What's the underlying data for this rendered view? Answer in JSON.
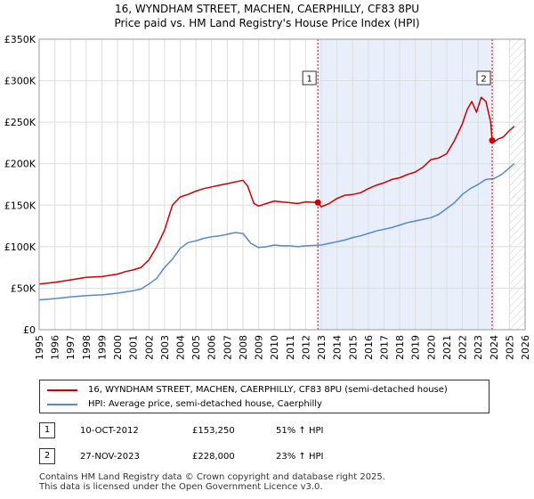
{
  "header": {
    "title_line1": "16, WYNDHAM STREET, MACHEN, CAERPHILLY, CF83 8PU",
    "title_line2": "Price paid vs. HM Land Registry's House Price Index (HPI)"
  },
  "colors": {
    "property": "#cc0000",
    "hpi": "#5588cc",
    "shade": "#e8eefa",
    "grid": "#dddddd",
    "marker_line": "#cc0000"
  },
  "chart_data": {
    "type": "line",
    "title": "Price paid vs. HM Land Registry's House Price Index (HPI)",
    "xlabel": "",
    "ylabel": "",
    "xlim": [
      1995,
      2026
    ],
    "ylim": [
      0,
      350000
    ],
    "x_ticks": [
      1995,
      1996,
      1997,
      1998,
      1999,
      2000,
      2001,
      2002,
      2003,
      2004,
      2005,
      2006,
      2007,
      2008,
      2009,
      2010,
      2011,
      2012,
      2013,
      2014,
      2015,
      2016,
      2017,
      2018,
      2019,
      2020,
      2021,
      2022,
      2023,
      2024,
      2025,
      2026
    ],
    "y_ticks": [
      {
        "value": 0,
        "label": "£0"
      },
      {
        "value": 50000,
        "label": "£50K"
      },
      {
        "value": 100000,
        "label": "£100K"
      },
      {
        "value": 150000,
        "label": "£150K"
      },
      {
        "value": 200000,
        "label": "£200K"
      },
      {
        "value": 250000,
        "label": "£250K"
      },
      {
        "value": 300000,
        "label": "£300K"
      },
      {
        "value": 350000,
        "label": "£350K"
      }
    ],
    "grid": true,
    "shaded_range": [
      2012.78,
      2023.9
    ],
    "hatched_after": 2025.0,
    "series": [
      {
        "name": "16, WYNDHAM STREET, MACHEN, CAERPHILLY, CF83 8PU (semi-detached house)",
        "color": "#cc0000",
        "x": [
          1995,
          1996,
          1997,
          1998,
          1999,
          2000,
          2000.5,
          2001,
          2001.5,
          2002,
          2002.5,
          2003,
          2003.5,
          2004,
          2004.5,
          2005,
          2005.5,
          2006,
          2006.5,
          2007,
          2007.5,
          2008,
          2008.3,
          2008.7,
          2009,
          2009.5,
          2010,
          2010.5,
          2011,
          2011.5,
          2012,
          2012.78,
          2013,
          2013.5,
          2014,
          2014.5,
          2015,
          2015.5,
          2016,
          2016.5,
          2017,
          2017.5,
          2018,
          2018.5,
          2019,
          2019.5,
          2020,
          2020.5,
          2021,
          2021.5,
          2022,
          2022.3,
          2022.6,
          2022.9,
          2023.2,
          2023.5,
          2023.8,
          2023.9,
          2024,
          2024.3,
          2024.6,
          2025,
          2025.3
        ],
        "values": [
          55000,
          57000,
          60000,
          63000,
          64000,
          67000,
          70000,
          72000,
          75000,
          84000,
          100000,
          120000,
          150000,
          160000,
          163000,
          167000,
          170000,
          172000,
          174000,
          176000,
          178000,
          180000,
          173000,
          152000,
          149000,
          152000,
          155000,
          154000,
          153000,
          152000,
          154000,
          153250,
          148000,
          152000,
          158000,
          162000,
          163000,
          165000,
          170000,
          174000,
          177000,
          181000,
          183000,
          187000,
          190000,
          196000,
          205000,
          207000,
          212000,
          228000,
          248000,
          265000,
          275000,
          262000,
          280000,
          275000,
          250000,
          228000,
          226000,
          230000,
          232000,
          240000,
          245000
        ]
      },
      {
        "name": "HPI: Average price, semi-detached house, Caerphilly",
        "color": "#5588cc",
        "x": [
          1995,
          1996,
          1997,
          1998,
          1999,
          2000,
          2001,
          2001.5,
          2002,
          2002.5,
          2003,
          2003.5,
          2004,
          2004.5,
          2005,
          2005.5,
          2006,
          2006.5,
          2007,
          2007.5,
          2008,
          2008.5,
          2009,
          2009.5,
          2010,
          2010.5,
          2011,
          2011.5,
          2012,
          2012.5,
          2013,
          2013.5,
          2014,
          2014.5,
          2015,
          2015.5,
          2016,
          2016.5,
          2017,
          2017.5,
          2018,
          2018.5,
          2019,
          2019.5,
          2020,
          2020.5,
          2021,
          2021.5,
          2022,
          2022.5,
          2023,
          2023.5,
          2024,
          2024.5,
          2025,
          2025.3
        ],
        "values": [
          36000,
          37500,
          39500,
          41000,
          42000,
          44000,
          47000,
          49000,
          55000,
          62000,
          75000,
          85000,
          98000,
          105000,
          107000,
          110000,
          112000,
          113000,
          115000,
          117000,
          116000,
          104000,
          99000,
          100000,
          102000,
          101000,
          101000,
          100000,
          101000,
          101500,
          102000,
          104000,
          106000,
          108000,
          111000,
          113000,
          116000,
          119000,
          121000,
          123000,
          126000,
          129000,
          131000,
          133000,
          135000,
          139000,
          146000,
          153000,
          163000,
          170000,
          175000,
          181000,
          182000,
          187000,
          195000,
          200000
        ]
      }
    ],
    "annotations": [
      {
        "label": "1",
        "x": 2012.78,
        "y": 153250
      },
      {
        "label": "2",
        "x": 2023.9,
        "y": 228000
      }
    ]
  },
  "legend": {
    "series1": "16, WYNDHAM STREET, MACHEN, CAERPHILLY, CF83 8PU (semi-detached house)",
    "series2": "HPI: Average price, semi-detached house, Caerphilly"
  },
  "transactions": [
    {
      "num": "1",
      "date": "10-OCT-2012",
      "price": "£153,250",
      "hpi": "51% ↑ HPI"
    },
    {
      "num": "2",
      "date": "27-NOV-2023",
      "price": "£228,000",
      "hpi": "23% ↑ HPI"
    }
  ],
  "footer": {
    "line1": "Contains HM Land Registry data © Crown copyright and database right 2025.",
    "line2": "This data is licensed under the Open Government Licence v3.0."
  }
}
